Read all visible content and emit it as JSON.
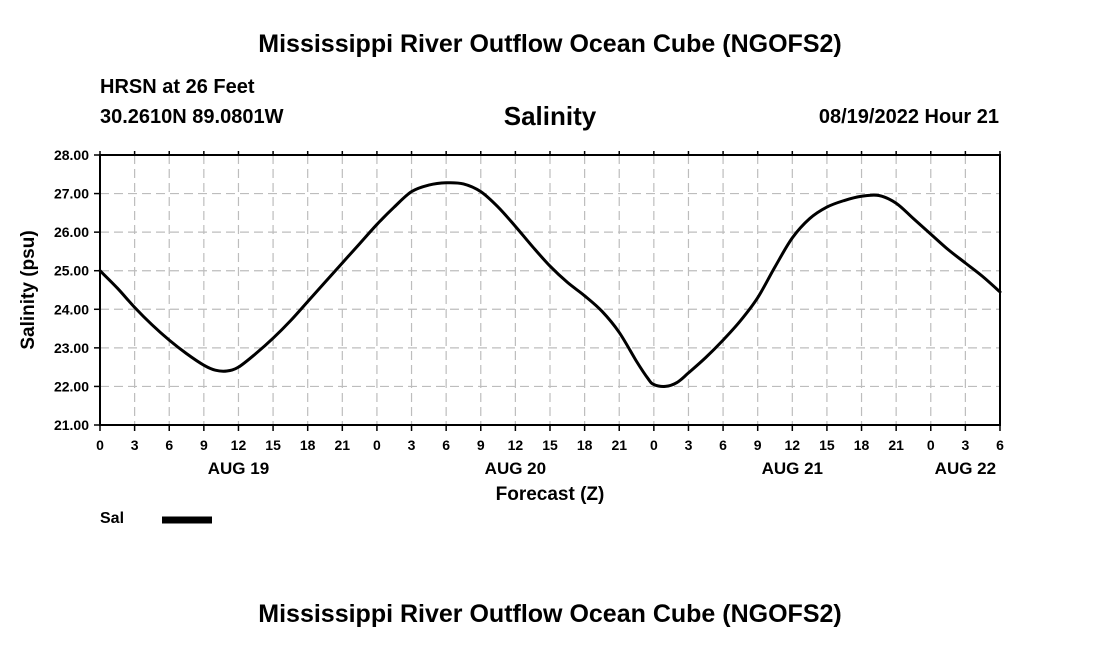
{
  "header": {
    "title_top": "Mississippi River Outflow Ocean Cube (NGOFS2)",
    "station_line": "HRSN at 26 Feet",
    "coords_line": "30.2610N  89.0801W",
    "chart_title": "Salinity",
    "datetime": "08/19/2022 Hour 21",
    "title_bottom": "Mississippi River Outflow Ocean Cube (NGOFS2)"
  },
  "legend": {
    "label": "Sal"
  },
  "chart_data": {
    "type": "line",
    "title": "Salinity",
    "xlabel": "Forecast (Z)",
    "ylabel": "Salinity (psu)",
    "x_unit": "hours since AUG 19 00Z",
    "xlim": [
      0,
      78
    ],
    "ylim": [
      21,
      28
    ],
    "grid": true,
    "legend_position": "bottom-left",
    "yticks": [
      "21.00",
      "22.00",
      "23.00",
      "24.00",
      "25.00",
      "26.00",
      "27.00",
      "28.00"
    ],
    "xticks": [
      "0",
      "3",
      "6",
      "9",
      "12",
      "15",
      "18",
      "21",
      "0",
      "3",
      "6",
      "9",
      "12",
      "15",
      "18",
      "21",
      "0",
      "3",
      "6",
      "9",
      "12",
      "15",
      "18",
      "21",
      "0",
      "3",
      "6"
    ],
    "day_labels": [
      {
        "label": "AUG 19",
        "hour": 12
      },
      {
        "label": "AUG 20",
        "hour": 36
      },
      {
        "label": "AUG 21",
        "hour": 60
      },
      {
        "label": "AUG 22",
        "hour": 75
      }
    ],
    "series": [
      {
        "name": "Sal",
        "color": "#000000",
        "x": [
          0,
          1.5,
          3,
          4.5,
          6,
          7.5,
          9,
          10,
          11,
          12,
          13.5,
          15,
          16.5,
          18,
          19.5,
          21,
          22.5,
          24,
          25.5,
          27,
          28.5,
          30,
          31.5,
          33,
          34.5,
          36,
          37.5,
          39,
          40.5,
          42,
          43.5,
          45,
          46.5,
          47.5,
          48,
          49,
          50,
          51,
          52.5,
          54,
          55.5,
          57,
          58.5,
          60,
          61.5,
          63,
          64.5,
          66,
          67.5,
          69,
          70.5,
          72,
          73.5,
          75,
          76.5,
          78
        ],
        "y": [
          25.0,
          24.55,
          24.05,
          23.6,
          23.2,
          22.85,
          22.55,
          22.42,
          22.4,
          22.5,
          22.85,
          23.25,
          23.7,
          24.2,
          24.7,
          25.2,
          25.7,
          26.2,
          26.65,
          27.05,
          27.22,
          27.28,
          27.25,
          27.05,
          26.65,
          26.15,
          25.62,
          25.12,
          24.7,
          24.35,
          23.95,
          23.4,
          22.65,
          22.2,
          22.05,
          22.0,
          22.1,
          22.35,
          22.75,
          23.2,
          23.7,
          24.3,
          25.1,
          25.85,
          26.35,
          26.65,
          26.82,
          26.93,
          26.95,
          26.75,
          26.35,
          25.95,
          25.55,
          25.2,
          24.85,
          24.45
        ]
      }
    ]
  }
}
